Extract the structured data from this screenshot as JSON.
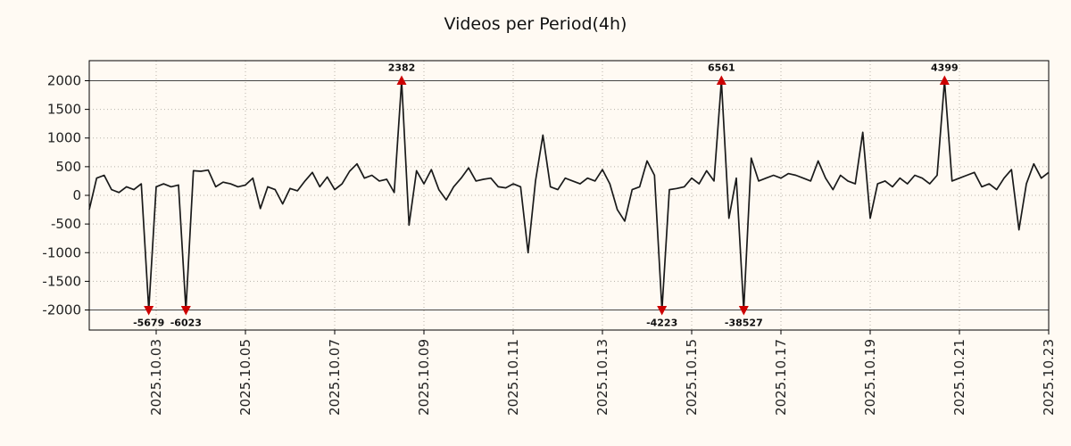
{
  "title": "Videos per Period(4h)",
  "colors": {
    "background": "#fffaf3",
    "line": "#1a1a1a",
    "marker": "#cc0000",
    "grid": "#b8b2aa",
    "clip_line": "#444444",
    "axis": "#000000",
    "tick_text": "#222222"
  },
  "chart_data": {
    "type": "line",
    "title": "Videos per Period(4h)",
    "xlabel": "",
    "ylabel": "",
    "period": "4h",
    "ylim": [
      -2350,
      2350
    ],
    "clip": 2000,
    "yticks": [
      2000,
      1500,
      1000,
      500,
      0,
      -500,
      -1000,
      -1500,
      -2000
    ],
    "xticks": [
      {
        "label": "2025.10.03",
        "i": 9
      },
      {
        "label": "2025.10.05",
        "i": 21
      },
      {
        "label": "2025.10.07",
        "i": 33
      },
      {
        "label": "2025.10.09",
        "i": 45
      },
      {
        "label": "2025.10.11",
        "i": 57
      },
      {
        "label": "2025.10.13",
        "i": 69
      },
      {
        "label": "2025.10.15",
        "i": 81
      },
      {
        "label": "2025.10.17",
        "i": 93
      },
      {
        "label": "2025.10.19",
        "i": 105
      },
      {
        "label": "2025.10.21",
        "i": 117
      },
      {
        "label": "2025.10.23",
        "i": 129
      }
    ],
    "values": [
      -250,
      300,
      350,
      100,
      50,
      150,
      100,
      200,
      -5679,
      150,
      200,
      150,
      180,
      -6023,
      430,
      420,
      440,
      150,
      230,
      200,
      150,
      180,
      300,
      -230,
      150,
      100,
      -150,
      120,
      80,
      250,
      400,
      150,
      320,
      100,
      200,
      420,
      550,
      300,
      350,
      250,
      280,
      50,
      2382,
      -520,
      430,
      200,
      450,
      100,
      -80,
      150,
      300,
      480,
      250,
      280,
      300,
      150,
      130,
      200,
      150,
      -1000,
      250,
      1050,
      150,
      100,
      300,
      250,
      200,
      300,
      250,
      450,
      200,
      -250,
      -450,
      100,
      150,
      600,
      350,
      -4223,
      100,
      120,
      150,
      300,
      200,
      430,
      250,
      6561,
      -400,
      300,
      -38527,
      650,
      250,
      300,
      350,
      300,
      380,
      350,
      300,
      250,
      600,
      300,
      100,
      350,
      250,
      200,
      1100,
      -400,
      200,
      250,
      150,
      300,
      200,
      350,
      300,
      200,
      350,
      4399,
      250,
      300,
      350,
      400,
      150,
      200,
      100,
      300,
      450,
      -600,
      200,
      550,
      300,
      400
    ],
    "annotations": [
      {
        "i": 8,
        "value": -5679,
        "label": "-5679",
        "dir": "down"
      },
      {
        "i": 13,
        "value": -6023,
        "label": "-6023",
        "dir": "down"
      },
      {
        "i": 42,
        "value": 2382,
        "label": "2382",
        "dir": "up"
      },
      {
        "i": 77,
        "value": -4223,
        "label": "-4223",
        "dir": "down"
      },
      {
        "i": 85,
        "value": 6561,
        "label": "6561",
        "dir": "up"
      },
      {
        "i": 88,
        "value": -38527,
        "label": "-38527",
        "dir": "down"
      },
      {
        "i": 115,
        "value": 4399,
        "label": "4399",
        "dir": "up"
      }
    ]
  }
}
